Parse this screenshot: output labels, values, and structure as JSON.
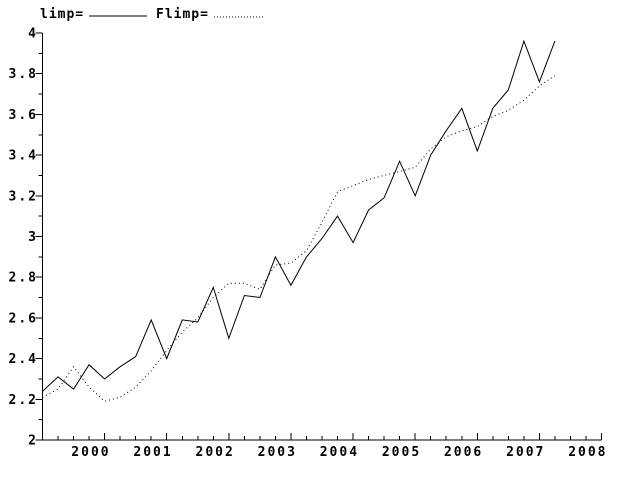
{
  "colors": {
    "ink": "#000000",
    "background": "#ffffff"
  },
  "legend": {
    "items": [
      {
        "label": "limp=",
        "style": "solid"
      },
      {
        "label": "Flimp=",
        "style": "dotted"
      }
    ]
  },
  "chart_data": {
    "type": "line",
    "title": "",
    "xlabel": "",
    "ylabel": "",
    "grid": false,
    "legend_position": "top-left",
    "xlim": [
      1999,
      2008
    ],
    "ylim": [
      2,
      4
    ],
    "x_major_ticks": [
      2000,
      2001,
      2002,
      2003,
      2004,
      2005,
      2006,
      2007,
      2008
    ],
    "x_tick_labels": [
      "2000",
      "2001",
      "2002",
      "2003",
      "2004",
      "2005",
      "2006",
      "2007",
      "2008"
    ],
    "x_minor_step": 0.25,
    "y_major_ticks": [
      2,
      2.2,
      2.4,
      2.6,
      2.8,
      3,
      3.2,
      3.4,
      3.6,
      3.8,
      4
    ],
    "y_tick_labels": [
      "2",
      "2.2",
      "2.4",
      "2.6",
      "2.8",
      "3",
      "3.2",
      "3.4",
      "3.6",
      "3.8",
      "4"
    ],
    "y_minor_step": 0.1,
    "x": [
      1999.0,
      1999.25,
      1999.5,
      1999.75,
      2000.0,
      2000.25,
      2000.5,
      2000.75,
      2001.0,
      2001.25,
      2001.5,
      2001.75,
      2002.0,
      2002.25,
      2002.5,
      2002.75,
      2003.0,
      2003.25,
      2003.5,
      2003.75,
      2004.0,
      2004.25,
      2004.5,
      2004.75,
      2005.0,
      2005.25,
      2005.5,
      2005.75,
      2006.0,
      2006.25,
      2006.5,
      2006.75,
      2007.0,
      2007.25
    ],
    "series": [
      {
        "name": "limp",
        "line_style": "solid",
        "values": [
          2.24,
          2.31,
          2.25,
          2.37,
          2.3,
          2.36,
          2.41,
          2.59,
          2.4,
          2.59,
          2.58,
          2.75,
          2.5,
          2.71,
          2.7,
          2.9,
          2.76,
          2.9,
          2.99,
          3.1,
          2.97,
          3.13,
          3.19,
          3.37,
          3.2,
          3.4,
          3.52,
          3.63,
          3.42,
          3.63,
          3.72,
          3.96,
          3.76,
          3.96
        ]
      },
      {
        "name": "Flimp",
        "line_style": "dotted",
        "values": [
          2.21,
          2.25,
          2.36,
          2.26,
          2.19,
          2.21,
          2.26,
          2.34,
          2.44,
          2.53,
          2.6,
          2.7,
          2.77,
          2.77,
          2.74,
          2.86,
          2.87,
          2.93,
          3.07,
          3.22,
          3.25,
          3.28,
          3.3,
          3.32,
          3.34,
          3.43,
          3.49,
          3.52,
          3.54,
          3.59,
          3.62,
          3.67,
          3.74,
          3.79
        ]
      }
    ]
  }
}
